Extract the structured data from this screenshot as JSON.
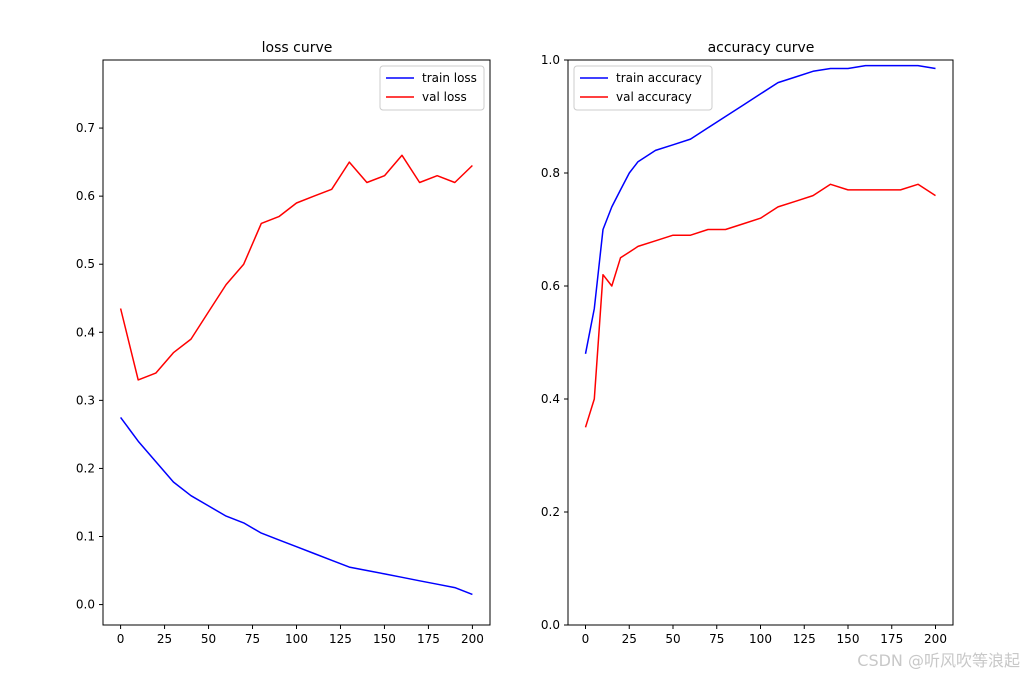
{
  "chart_data": [
    {
      "type": "line",
      "title": "loss curve",
      "xlabel": "",
      "ylabel": "",
      "xlim": [
        -10,
        210
      ],
      "ylim": [
        -0.03,
        0.8
      ],
      "xticks": [
        0,
        25,
        50,
        75,
        100,
        125,
        150,
        175,
        200
      ],
      "yticks": [
        0.0,
        0.1,
        0.2,
        0.3,
        0.4,
        0.5,
        0.6,
        0.7
      ],
      "ytick_labels": [
        "0.0",
        "0.1",
        "0.2",
        "0.3",
        "0.4",
        "0.5",
        "0.6",
        "0.7"
      ],
      "grid": false,
      "legend_position": "top-right",
      "series": [
        {
          "name": "train loss",
          "color": "#0000ff",
          "x": [
            0,
            10,
            20,
            30,
            40,
            50,
            60,
            70,
            80,
            90,
            100,
            110,
            120,
            130,
            140,
            150,
            160,
            170,
            180,
            190,
            200
          ],
          "y": [
            0.275,
            0.24,
            0.21,
            0.18,
            0.16,
            0.145,
            0.13,
            0.12,
            0.105,
            0.095,
            0.085,
            0.075,
            0.065,
            0.055,
            0.05,
            0.045,
            0.04,
            0.035,
            0.03,
            0.025,
            0.015
          ]
        },
        {
          "name": "val loss",
          "color": "#ff0000",
          "x": [
            0,
            10,
            20,
            30,
            40,
            50,
            60,
            70,
            80,
            90,
            100,
            110,
            120,
            130,
            140,
            150,
            160,
            170,
            180,
            190,
            200
          ],
          "y": [
            0.435,
            0.33,
            0.34,
            0.37,
            0.39,
            0.43,
            0.47,
            0.5,
            0.56,
            0.57,
            0.59,
            0.6,
            0.61,
            0.65,
            0.62,
            0.63,
            0.66,
            0.62,
            0.63,
            0.62,
            0.645
          ]
        }
      ]
    },
    {
      "type": "line",
      "title": "accuracy curve",
      "xlabel": "",
      "ylabel": "",
      "xlim": [
        -10,
        210
      ],
      "ylim": [
        0.0,
        1.0
      ],
      "xticks": [
        0,
        25,
        50,
        75,
        100,
        125,
        150,
        175,
        200
      ],
      "yticks": [
        0.0,
        0.2,
        0.4,
        0.6,
        0.8,
        1.0
      ],
      "ytick_labels": [
        "0.0",
        "0.2",
        "0.4",
        "0.6",
        "0.8",
        "1.0"
      ],
      "grid": false,
      "legend_position": "top-left",
      "series": [
        {
          "name": "train accuracy",
          "color": "#0000ff",
          "x": [
            0,
            5,
            10,
            15,
            20,
            25,
            30,
            40,
            50,
            60,
            70,
            80,
            90,
            100,
            110,
            120,
            130,
            140,
            150,
            160,
            170,
            180,
            190,
            200
          ],
          "y": [
            0.48,
            0.56,
            0.7,
            0.74,
            0.77,
            0.8,
            0.82,
            0.84,
            0.85,
            0.86,
            0.88,
            0.9,
            0.92,
            0.94,
            0.96,
            0.97,
            0.98,
            0.985,
            0.985,
            0.99,
            0.99,
            0.99,
            0.99,
            0.985
          ]
        },
        {
          "name": "val accuracy",
          "color": "#ff0000",
          "x": [
            0,
            5,
            10,
            15,
            20,
            25,
            30,
            40,
            50,
            60,
            70,
            80,
            90,
            100,
            110,
            120,
            130,
            140,
            150,
            160,
            170,
            180,
            190,
            200
          ],
          "y": [
            0.35,
            0.4,
            0.62,
            0.6,
            0.65,
            0.66,
            0.67,
            0.68,
            0.69,
            0.69,
            0.7,
            0.7,
            0.71,
            0.72,
            0.74,
            0.75,
            0.76,
            0.78,
            0.77,
            0.77,
            0.77,
            0.77,
            0.78,
            0.76
          ]
        }
      ]
    }
  ],
  "watermark": "CSDN @听风吹等浪起"
}
